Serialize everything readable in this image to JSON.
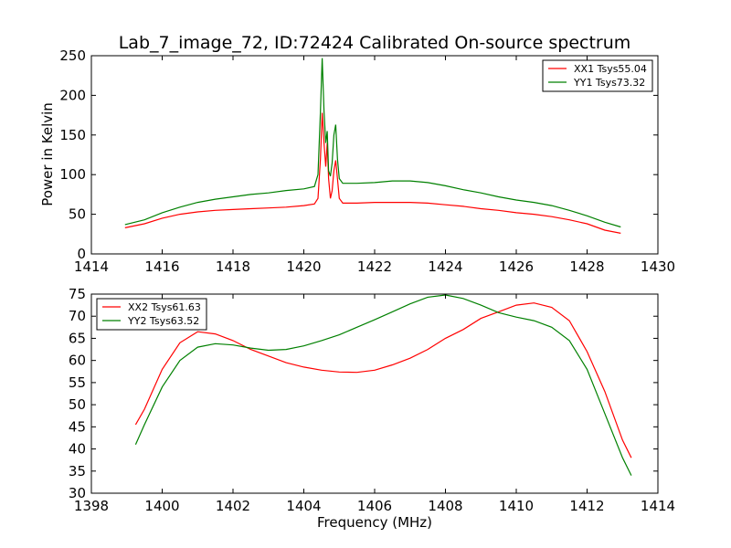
{
  "chart_data": [
    {
      "type": "line",
      "title": "Lab_7_image_72, ID:72424 Calibrated On-source spectrum",
      "xlabel": "",
      "ylabel": "Power in Kelvin",
      "xlim": [
        1414,
        1430
      ],
      "ylim": [
        0,
        250
      ],
      "xticks": [
        "1414",
        "1416",
        "1418",
        "1420",
        "1422",
        "1424",
        "1426",
        "1428",
        "1430"
      ],
      "yticks": [
        "0",
        "50",
        "100",
        "150",
        "200",
        "250"
      ],
      "grid": false,
      "legend_position": "top-right",
      "series": [
        {
          "name": "XX1 Tsys55.04",
          "color": "#ff0000",
          "points": [
            [
              1414.95,
              33
            ],
            [
              1415.5,
              38
            ],
            [
              1416,
              45
            ],
            [
              1416.5,
              50
            ],
            [
              1417,
              53
            ],
            [
              1417.5,
              55
            ],
            [
              1418,
              56
            ],
            [
              1418.5,
              57
            ],
            [
              1419,
              58
            ],
            [
              1419.5,
              59
            ],
            [
              1420,
              61
            ],
            [
              1420.3,
              63
            ],
            [
              1420.4,
              70
            ],
            [
              1420.47,
              120
            ],
            [
              1420.52,
              178
            ],
            [
              1420.57,
              140
            ],
            [
              1420.62,
              110
            ],
            [
              1420.66,
              140
            ],
            [
              1420.7,
              95
            ],
            [
              1420.75,
              70
            ],
            [
              1420.8,
              80
            ],
            [
              1420.85,
              105
            ],
            [
              1420.9,
              118
            ],
            [
              1420.95,
              95
            ],
            [
              1421,
              70
            ],
            [
              1421.1,
              64
            ],
            [
              1421.5,
              64
            ],
            [
              1422,
              65
            ],
            [
              1422.5,
              65
            ],
            [
              1423,
              65
            ],
            [
              1423.5,
              64
            ],
            [
              1424,
              62
            ],
            [
              1424.5,
              60
            ],
            [
              1425,
              57
            ],
            [
              1425.5,
              55
            ],
            [
              1426,
              52
            ],
            [
              1426.5,
              50
            ],
            [
              1427,
              47
            ],
            [
              1427.5,
              43
            ],
            [
              1428,
              38
            ],
            [
              1428.5,
              30
            ],
            [
              1428.95,
              26
            ]
          ]
        },
        {
          "name": "YY1 Tsys73.32",
          "color": "#008000",
          "points": [
            [
              1414.95,
              37
            ],
            [
              1415.5,
              43
            ],
            [
              1416,
              52
            ],
            [
              1416.5,
              59
            ],
            [
              1417,
              65
            ],
            [
              1417.5,
              69
            ],
            [
              1418,
              72
            ],
            [
              1418.5,
              75
            ],
            [
              1419,
              77
            ],
            [
              1419.5,
              80
            ],
            [
              1420,
              82
            ],
            [
              1420.3,
              85
            ],
            [
              1420.4,
              100
            ],
            [
              1420.47,
              180
            ],
            [
              1420.52,
              247
            ],
            [
              1420.57,
              180
            ],
            [
              1420.62,
              140
            ],
            [
              1420.66,
              155
            ],
            [
              1420.7,
              105
            ],
            [
              1420.75,
              98
            ],
            [
              1420.8,
              115
            ],
            [
              1420.85,
              150
            ],
            [
              1420.9,
              163
            ],
            [
              1420.95,
              120
            ],
            [
              1421,
              95
            ],
            [
              1421.1,
              89
            ],
            [
              1421.5,
              89
            ],
            [
              1422,
              90
            ],
            [
              1422.5,
              92
            ],
            [
              1423,
              92
            ],
            [
              1423.5,
              90
            ],
            [
              1424,
              86
            ],
            [
              1424.5,
              81
            ],
            [
              1425,
              77
            ],
            [
              1425.5,
              72
            ],
            [
              1426,
              68
            ],
            [
              1426.5,
              65
            ],
            [
              1427,
              61
            ],
            [
              1427.5,
              55
            ],
            [
              1428,
              48
            ],
            [
              1428.5,
              40
            ],
            [
              1428.95,
              34
            ]
          ]
        }
      ]
    },
    {
      "type": "line",
      "title": "",
      "xlabel": "Frequency (MHz)",
      "ylabel": "",
      "xlim": [
        1398,
        1414
      ],
      "ylim": [
        30,
        75
      ],
      "xticks": [
        "1398",
        "1400",
        "1402",
        "1404",
        "1406",
        "1408",
        "1410",
        "1412",
        "1414"
      ],
      "yticks": [
        "30",
        "35",
        "40",
        "45",
        "50",
        "55",
        "60",
        "65",
        "70",
        "75"
      ],
      "grid": false,
      "legend_position": "top-left",
      "series": [
        {
          "name": "XX2 Tsys61.63",
          "color": "#ff0000",
          "points": [
            [
              1399.25,
              45.5
            ],
            [
              1399.5,
              49
            ],
            [
              1400,
              58
            ],
            [
              1400.5,
              64
            ],
            [
              1401,
              66.5
            ],
            [
              1401.5,
              66
            ],
            [
              1402,
              64.5
            ],
            [
              1402.5,
              62.5
            ],
            [
              1403,
              61
            ],
            [
              1403.5,
              59.5
            ],
            [
              1404,
              58.5
            ],
            [
              1404.5,
              57.8
            ],
            [
              1405,
              57.4
            ],
            [
              1405.5,
              57.3
            ],
            [
              1406,
              57.8
            ],
            [
              1406.5,
              59
            ],
            [
              1407,
              60.5
            ],
            [
              1407.5,
              62.5
            ],
            [
              1408,
              65
            ],
            [
              1408.5,
              67
            ],
            [
              1409,
              69.5
            ],
            [
              1409.5,
              71
            ],
            [
              1410,
              72.5
            ],
            [
              1410.5,
              73
            ],
            [
              1411,
              72
            ],
            [
              1411.5,
              69
            ],
            [
              1412,
              62
            ],
            [
              1412.5,
              53
            ],
            [
              1413,
              42
            ],
            [
              1413.25,
              38
            ]
          ]
        },
        {
          "name": "YY2 Tsys63.52",
          "color": "#008000",
          "points": [
            [
              1399.25,
              41
            ],
            [
              1399.5,
              45.5
            ],
            [
              1400,
              54
            ],
            [
              1400.5,
              60
            ],
            [
              1401,
              63
            ],
            [
              1401.5,
              63.8
            ],
            [
              1402,
              63.5
            ],
            [
              1402.5,
              62.8
            ],
            [
              1403,
              62.3
            ],
            [
              1403.5,
              62.5
            ],
            [
              1404,
              63.3
            ],
            [
              1404.5,
              64.5
            ],
            [
              1405,
              65.8
            ],
            [
              1405.5,
              67.5
            ],
            [
              1406,
              69.2
            ],
            [
              1406.5,
              71
            ],
            [
              1407,
              72.8
            ],
            [
              1407.5,
              74.3
            ],
            [
              1408,
              74.8
            ],
            [
              1408.5,
              74
            ],
            [
              1409,
              72.5
            ],
            [
              1409.5,
              70.8
            ],
            [
              1410,
              69.8
            ],
            [
              1410.5,
              69
            ],
            [
              1411,
              67.5
            ],
            [
              1411.5,
              64.5
            ],
            [
              1412,
              58
            ],
            [
              1412.5,
              48
            ],
            [
              1413,
              38
            ],
            [
              1413.25,
              34
            ]
          ]
        }
      ]
    }
  ]
}
